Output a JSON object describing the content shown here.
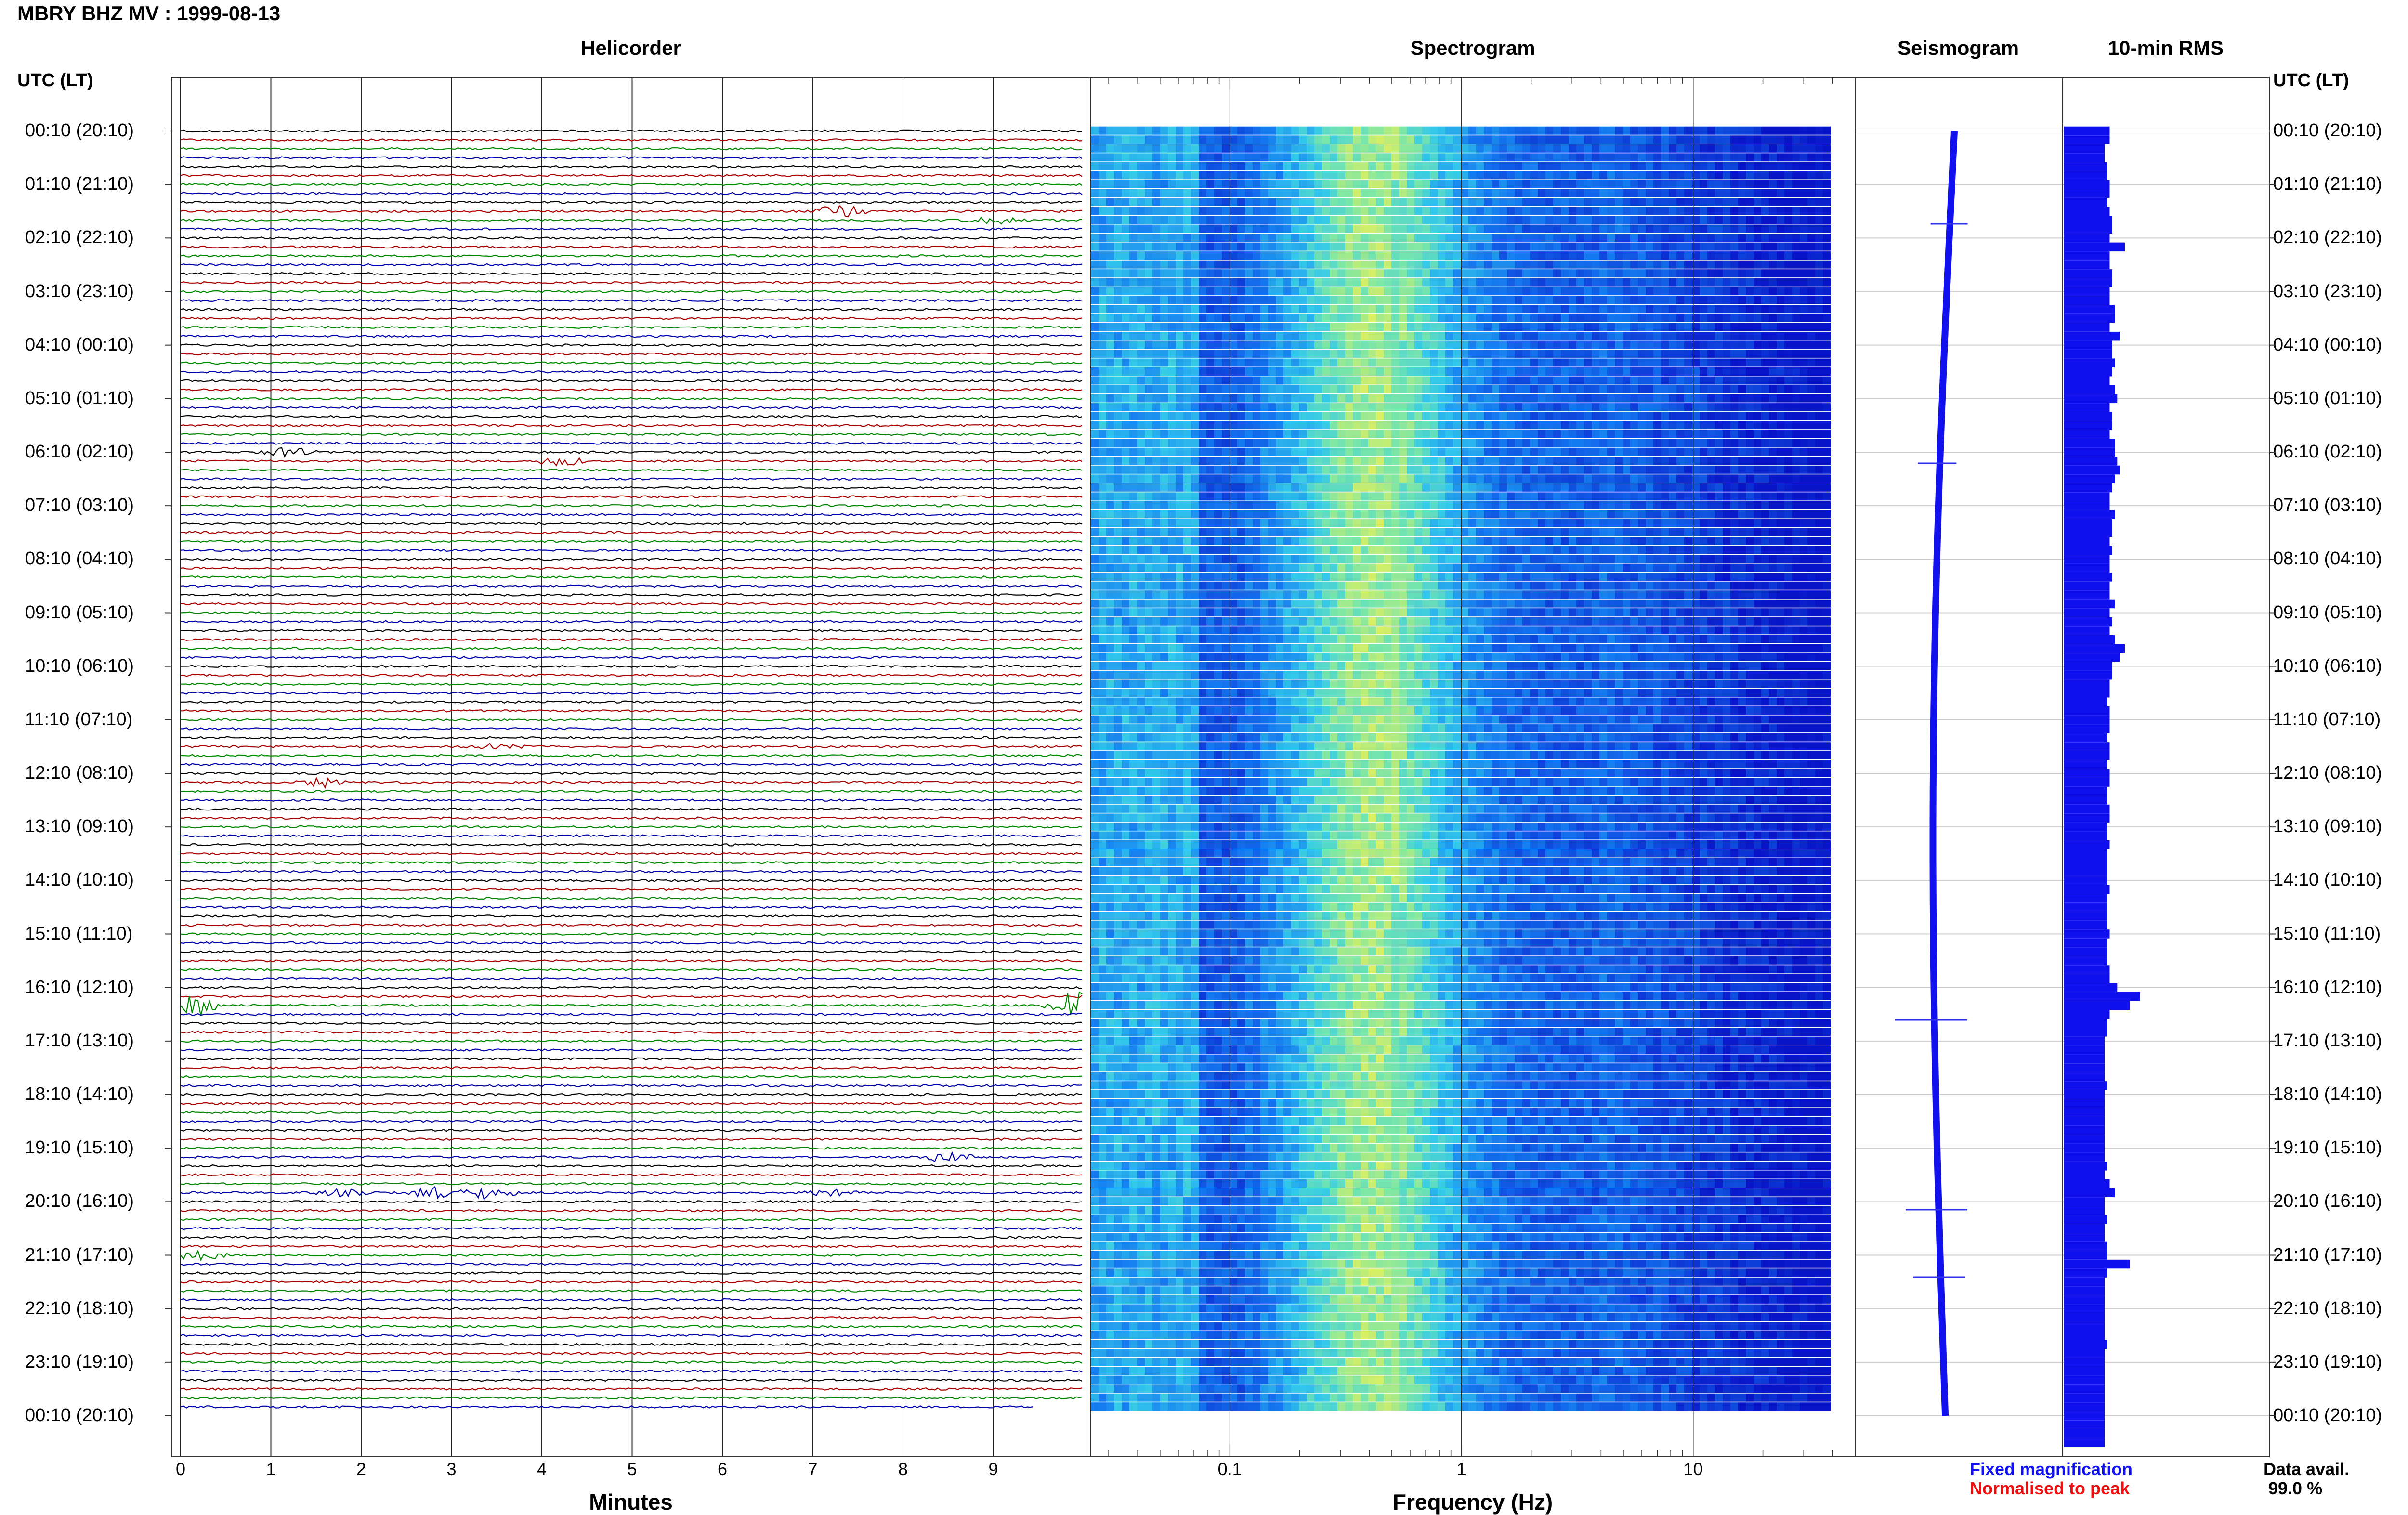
{
  "page": {
    "title": "MBRY BHZ MV : 1999-08-13"
  },
  "panels": {
    "helicorder": "Helicorder",
    "spectrogram": "Spectrogram",
    "seismogram": "Seismogram",
    "rms": "10-min RMS"
  },
  "axes": {
    "left_header": "UTC (LT)",
    "right_header": "UTC (LT)",
    "helicorder_xlabel": "Minutes",
    "spectrogram_xlabel": "Frequency (Hz)"
  },
  "legend": {
    "fixed": "Fixed magnification",
    "normalised": "Normalised to peak",
    "fixed_color": "#1111ee",
    "normalised_color": "#ee1111"
  },
  "data_availability": {
    "label": "Data avail.",
    "value": "99.0 %"
  },
  "colors": {
    "trace_cycle": [
      "#000000",
      "#aa0000",
      "#008800",
      "#0000aa"
    ],
    "spectrogram_low": "#0a1fd0",
    "spectrogram_mid": "#38c8f0",
    "spectrogram_high": "#e8f060",
    "rms_bar": "#1010ee"
  },
  "chart_data": [
    {
      "type": "line",
      "panel": "Helicorder",
      "xlabel": "Minutes",
      "x_ticks": [
        "0",
        "1",
        "2",
        "3",
        "4",
        "5",
        "6",
        "7",
        "8",
        "9"
      ],
      "xlim": [
        0,
        10
      ],
      "row_count": 144,
      "row_minutes": 10,
      "y_ticks": [
        "00:10 (20:10)",
        "01:10 (21:10)",
        "02:10 (22:10)",
        "03:10 (23:10)",
        "04:10 (00:10)",
        "05:10 (01:10)",
        "06:10 (02:10)",
        "07:10 (03:10)",
        "08:10 (04:10)",
        "09:10 (05:10)",
        "10:10 (06:10)",
        "11:10 (07:10)",
        "12:10 (08:10)",
        "13:10 (09:10)",
        "14:10 (10:10)",
        "15:10 (11:10)",
        "16:10 (12:10)",
        "17:10 (13:10)",
        "18:10 (14:10)",
        "19:10 (15:10)",
        "20:10 (16:10)",
        "21:10 (17:10)",
        "22:10 (18:10)",
        "23:10 (19:10)",
        "00:10 (20:10)"
      ],
      "events": [
        {
          "row": 9,
          "minute": 7.3,
          "amplitude": 2.2
        },
        {
          "row": 10,
          "minute": 9.0,
          "amplitude": 1.2
        },
        {
          "row": 36,
          "minute": 1.2,
          "amplitude": 1.6
        },
        {
          "row": 37,
          "minute": 4.2,
          "amplitude": 2.0
        },
        {
          "row": 69,
          "minute": 3.5,
          "amplitude": 0.9
        },
        {
          "row": 73,
          "minute": 1.6,
          "amplitude": 1.6
        },
        {
          "row": 98,
          "minute": 0.2,
          "amplitude": 4.0
        },
        {
          "row": 98,
          "minute": 9.9,
          "amplitude": 5.0
        },
        {
          "row": 115,
          "minute": 8.5,
          "amplitude": 2.0
        },
        {
          "row": 119,
          "minute": 1.8,
          "amplitude": 1.4
        },
        {
          "row": 119,
          "minute": 2.8,
          "amplitude": 1.8
        },
        {
          "row": 119,
          "minute": 3.4,
          "amplitude": 2.4
        },
        {
          "row": 119,
          "minute": 7.2,
          "amplitude": 1.1
        },
        {
          "row": 126,
          "minute": 0.2,
          "amplitude": 1.8
        }
      ]
    },
    {
      "type": "heatmap",
      "panel": "Spectrogram",
      "xlabel": "Frequency (Hz)",
      "x_scale": "log",
      "x_ticks": [
        "0.1",
        "1",
        "10"
      ],
      "xlim": [
        0.025,
        50
      ],
      "freq_max_shown": 40,
      "peak_frequency_band_hz": [
        0.2,
        0.7
      ],
      "row_count": 144
    },
    {
      "type": "line",
      "panel": "Seismogram",
      "description_of_trace": "long-period drift trace over 24 h",
      "row_count": 144
    },
    {
      "type": "bar",
      "panel": "10-min RMS",
      "orientation": "horizontal",
      "row_count": 144,
      "relative_values": [
        0.9,
        0.9,
        0.8,
        0.8,
        0.85,
        0.85,
        0.9,
        0.9,
        0.85,
        0.9,
        0.95,
        0.95,
        0.9,
        1.2,
        0.9,
        0.9,
        0.95,
        0.95,
        0.9,
        0.9,
        1.0,
        1.0,
        0.9,
        1.1,
        0.95,
        0.95,
        1.0,
        0.95,
        0.9,
        1.0,
        1.05,
        0.9,
        0.95,
        0.95,
        0.9,
        1.0,
        1.0,
        1.05,
        1.1,
        1.0,
        0.95,
        0.9,
        0.9,
        1.0,
        0.95,
        0.95,
        0.9,
        0.95,
        0.9,
        0.9,
        0.95,
        0.9,
        0.9,
        1.0,
        0.9,
        0.95,
        0.9,
        1.0,
        1.2,
        1.1,
        0.95,
        0.95,
        0.9,
        0.9,
        0.85,
        0.9,
        0.9,
        0.9,
        0.85,
        0.9,
        0.9,
        0.85,
        0.9,
        0.9,
        0.85,
        0.85,
        0.9,
        0.9,
        0.85,
        0.85,
        0.9,
        0.85,
        0.85,
        0.85,
        0.85,
        0.9,
        0.85,
        0.85,
        0.85,
        0.85,
        0.9,
        0.85,
        0.85,
        0.85,
        0.9,
        0.9,
        1.05,
        1.5,
        1.3,
        0.9,
        0.85,
        0.85,
        0.8,
        0.8,
        0.8,
        0.8,
        0.8,
        0.85,
        0.8,
        0.8,
        0.8,
        0.8,
        0.8,
        0.8,
        0.8,
        0.8,
        0.85,
        0.8,
        0.9,
        1.0,
        0.8,
        0.8,
        0.85,
        0.8,
        0.8,
        0.85,
        0.85,
        1.3,
        0.85,
        0.8,
        0.8,
        0.8,
        0.8,
        0.8,
        0.8,
        0.8,
        0.85,
        0.8,
        0.8,
        0.8,
        0.8,
        0.8,
        0.8,
        0.8,
        0.8,
        0.8,
        0.8,
        0.8
      ]
    }
  ]
}
